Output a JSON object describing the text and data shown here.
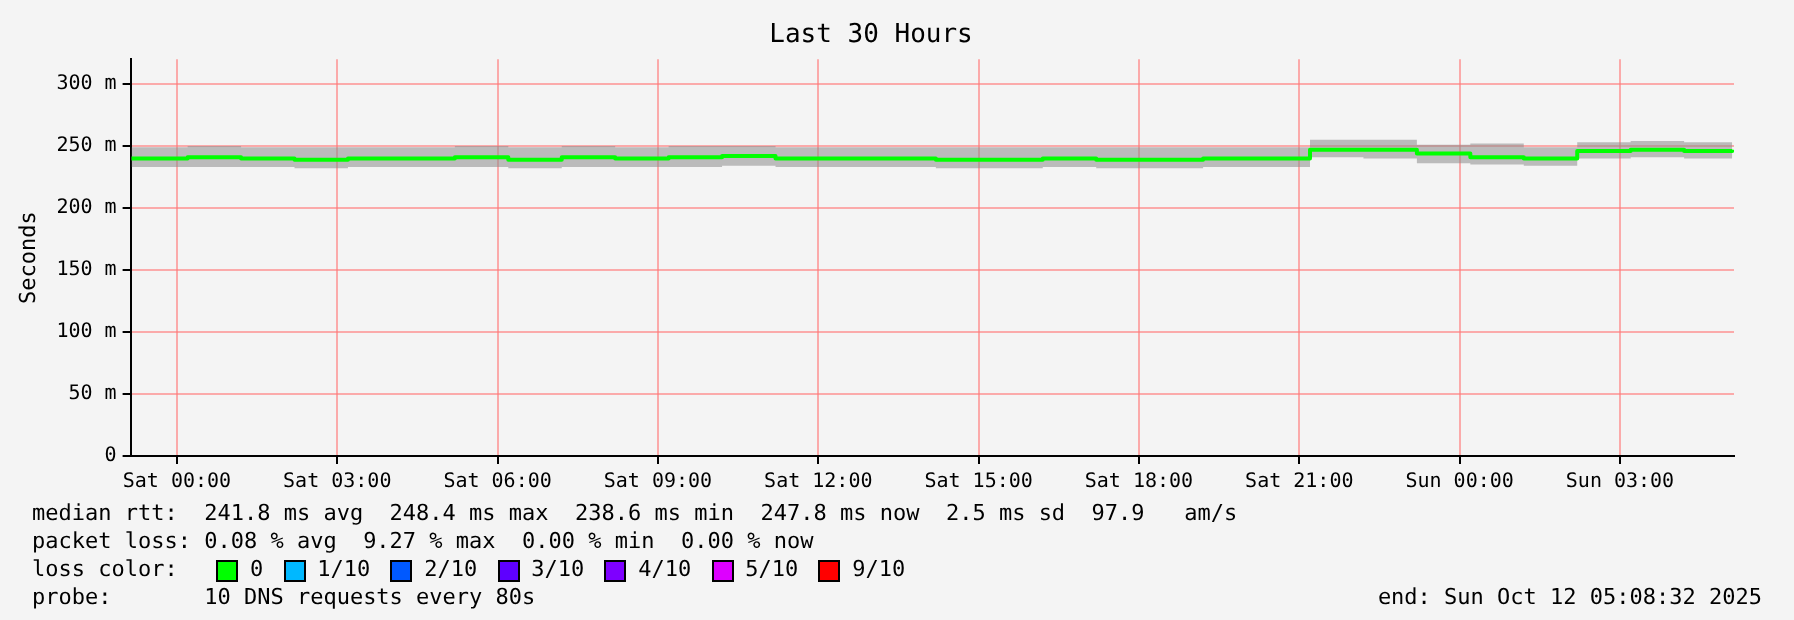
{
  "chart_data": {
    "type": "step",
    "title": "Last 30 Hours",
    "ylabel": "Seconds",
    "x": [
      "2025-10-10T23:09",
      "2025-10-11T00:12",
      "2025-10-11T01:12",
      "2025-10-11T02:12",
      "2025-10-11T03:12",
      "2025-10-11T04:12",
      "2025-10-11T05:12",
      "2025-10-11T06:12",
      "2025-10-11T07:12",
      "2025-10-11T08:12",
      "2025-10-11T09:12",
      "2025-10-11T10:12",
      "2025-10-11T11:12",
      "2025-10-11T12:12",
      "2025-10-11T13:12",
      "2025-10-11T14:12",
      "2025-10-11T15:12",
      "2025-10-11T16:12",
      "2025-10-11T17:12",
      "2025-10-11T18:12",
      "2025-10-11T19:12",
      "2025-10-11T20:12",
      "2025-10-11T21:12",
      "2025-10-11T22:12",
      "2025-10-11T23:12",
      "2025-10-12T00:12",
      "2025-10-12T01:12",
      "2025-10-12T02:12",
      "2025-10-12T03:12",
      "2025-10-12T04:12",
      "2025-10-12T05:06"
    ],
    "series": [
      {
        "color": "#00ff00",
        "values": [
          240,
          241,
          240,
          239,
          240,
          240,
          241,
          239,
          241,
          240,
          241,
          242,
          240,
          240,
          240,
          239,
          239,
          240,
          239,
          239,
          240,
          240,
          247,
          247,
          244,
          241,
          240,
          246,
          247,
          246,
          247
        ],
        "lower": [
          233,
          233,
          233,
          232,
          233,
          233,
          233,
          232,
          233,
          233,
          233,
          234,
          233,
          233,
          233,
          232,
          232,
          233,
          232,
          232,
          233,
          233,
          241,
          240,
          236,
          235,
          234,
          240,
          241,
          240,
          241
        ],
        "upper": [
          249,
          250,
          249,
          249,
          249,
          249,
          250,
          249,
          250,
          249,
          250,
          250,
          249,
          249,
          249,
          249,
          249,
          249,
          249,
          249,
          249,
          249,
          255,
          255,
          251,
          252,
          249,
          253,
          254,
          253,
          253
        ]
      }
    ],
    "xlim": [
      "2025-10-10T23:08",
      "2025-10-12T05:08"
    ],
    "xticks": [
      {
        "value": "2025-10-11T00:00",
        "label": "Sat 00:00"
      },
      {
        "value": "2025-10-11T03:00",
        "label": "Sat 03:00"
      },
      {
        "value": "2025-10-11T06:00",
        "label": "Sat 06:00"
      },
      {
        "value": "2025-10-11T09:00",
        "label": "Sat 09:00"
      },
      {
        "value": "2025-10-11T12:00",
        "label": "Sat 12:00"
      },
      {
        "value": "2025-10-11T15:00",
        "label": "Sat 15:00"
      },
      {
        "value": "2025-10-11T18:00",
        "label": "Sat 18:00"
      },
      {
        "value": "2025-10-11T21:00",
        "label": "Sat 21:00"
      },
      {
        "value": "2025-10-12T00:00",
        "label": "Sun 00:00"
      },
      {
        "value": "2025-10-12T03:00",
        "label": "Sun 03:00"
      }
    ],
    "ylim": [
      0,
      320
    ],
    "yticks": [
      0,
      {
        "value": 50,
        "label": "50 m"
      },
      {
        "value": 100,
        "label": "100 m"
      },
      {
        "value": 150,
        "label": "150 m"
      },
      {
        "value": 200,
        "label": "200 m"
      },
      {
        "value": 250,
        "label": "250 m"
      },
      {
        "value": 300,
        "label": "300 m"
      }
    ],
    "grid": true,
    "annotations": [
      "median rtt:  241.8 ms avg  248.4 ms max  238.6 ms min  247.8 ms now  2.5 ms sd  97.9   am/s",
      "packet loss: 0.08 % avg  9.27 % max  0.00 % min  0.00 % now",
      "loss color:",
      "0",
      "1/10",
      "2/10",
      "3/10",
      "4/10",
      "5/10",
      "9/10",
      "probe:       10 DNS requests every 80s",
      "end: Sun Oct 12 05:08:32 2025"
    ]
  }
}
